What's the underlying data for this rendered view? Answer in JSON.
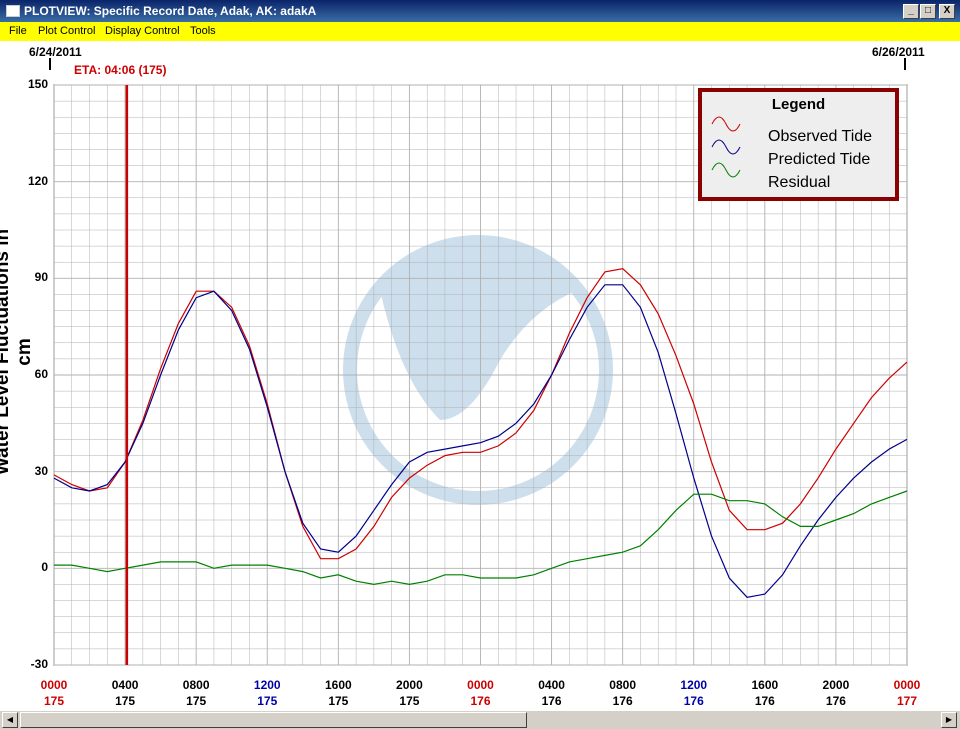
{
  "window": {
    "title": "PLOTVIEW: Specific Record Date, Adak, AK: adakA",
    "min_label": "_",
    "max_label": "□",
    "close_label": "X"
  },
  "menu": [
    "File",
    "Plot Control",
    "Display Control",
    "Tools"
  ],
  "header": {
    "start_date": "6/24/2011",
    "end_date": "6/26/2011",
    "eta": "ETA: 04:06 (175)"
  },
  "colors": {
    "observed": "#cc0000",
    "predicted": "#00008b",
    "residual": "#008000",
    "eta_line": "#cc0000",
    "grid": "#b0b0b0",
    "legend_border": "#8b0000",
    "watermark": "#c8dcea"
  },
  "chart_data": {
    "type": "line",
    "title": "",
    "ylabel": "Water Level Fluctuations in cm",
    "xlabel": "",
    "ylim": [
      -30,
      150
    ],
    "yticks": [
      -30,
      0,
      30,
      60,
      90,
      120,
      150
    ],
    "xlim_hours": [
      0,
      48
    ],
    "xticks": [
      {
        "time": "0000",
        "day": "175",
        "color": "#cc0000"
      },
      {
        "time": "0400",
        "day": "175",
        "color": "#000000"
      },
      {
        "time": "0800",
        "day": "175",
        "color": "#000000"
      },
      {
        "time": "1200",
        "day": "175",
        "color": "#0000aa"
      },
      {
        "time": "1600",
        "day": "175",
        "color": "#000000"
      },
      {
        "time": "2000",
        "day": "175",
        "color": "#000000"
      },
      {
        "time": "0000",
        "day": "176",
        "color": "#cc0000"
      },
      {
        "time": "0400",
        "day": "176",
        "color": "#000000"
      },
      {
        "time": "0800",
        "day": "176",
        "color": "#000000"
      },
      {
        "time": "1200",
        "day": "176",
        "color": "#0000aa"
      },
      {
        "time": "1600",
        "day": "176",
        "color": "#000000"
      },
      {
        "time": "2000",
        "day": "176",
        "color": "#000000"
      },
      {
        "time": "0000",
        "day": "177",
        "color": "#cc0000"
      }
    ],
    "grid": true,
    "legend_position": "top-right",
    "legend_title": "Legend",
    "eta_hour": 4.1,
    "series": [
      {
        "name": "Observed Tide",
        "hours": [
          0,
          1,
          2,
          3,
          4,
          5,
          6,
          7,
          8,
          9,
          10,
          11,
          12,
          13,
          14,
          15,
          16,
          17,
          18,
          19,
          20,
          21,
          22,
          23,
          24,
          25,
          26,
          27,
          28,
          29,
          30,
          31,
          32,
          33,
          34,
          35,
          36,
          37,
          38,
          39,
          40,
          41,
          42,
          43,
          44,
          45,
          46,
          47,
          48
        ],
        "values": [
          29,
          26,
          24,
          25,
          33,
          46,
          62,
          76,
          86,
          86,
          81,
          69,
          51,
          30,
          13,
          3,
          3,
          6,
          13,
          22,
          28,
          32,
          35,
          36,
          36,
          38,
          42,
          49,
          60,
          73,
          84,
          92,
          93,
          88,
          79,
          66,
          51,
          33,
          18,
          12,
          12,
          14,
          20,
          28,
          37,
          45,
          53,
          59,
          64
        ]
      },
      {
        "name": "Predicted Tide",
        "hours": [
          0,
          1,
          2,
          3,
          4,
          5,
          6,
          7,
          8,
          9,
          10,
          11,
          12,
          13,
          14,
          15,
          16,
          17,
          18,
          19,
          20,
          21,
          22,
          23,
          24,
          25,
          26,
          27,
          28,
          29,
          30,
          31,
          32,
          33,
          34,
          35,
          36,
          37,
          38,
          39,
          40,
          41,
          42,
          43,
          44,
          45,
          46,
          47,
          48
        ],
        "values": [
          28,
          25,
          24,
          26,
          33,
          45,
          60,
          74,
          84,
          86,
          80,
          68,
          50,
          30,
          14,
          6,
          5,
          10,
          18,
          26,
          33,
          36,
          37,
          38,
          39,
          41,
          45,
          51,
          60,
          71,
          81,
          88,
          88,
          81,
          67,
          48,
          28,
          10,
          -3,
          -9,
          -8,
          -2,
          7,
          15,
          22,
          28,
          33,
          37,
          40
        ]
      },
      {
        "name": "Residual",
        "hours": [
          0,
          1,
          2,
          3,
          4,
          5,
          6,
          7,
          8,
          9,
          10,
          11,
          12,
          13,
          14,
          15,
          16,
          17,
          18,
          19,
          20,
          21,
          22,
          23,
          24,
          25,
          26,
          27,
          28,
          29,
          30,
          31,
          32,
          33,
          34,
          35,
          36,
          37,
          38,
          39,
          40,
          41,
          42,
          43,
          44,
          45,
          46,
          47,
          48
        ],
        "values": [
          1,
          1,
          0,
          -1,
          0,
          1,
          2,
          2,
          2,
          0,
          1,
          1,
          1,
          0,
          -1,
          -3,
          -2,
          -4,
          -5,
          -4,
          -5,
          -4,
          -2,
          -2,
          -3,
          -3,
          -3,
          -2,
          0,
          2,
          3,
          4,
          5,
          7,
          12,
          18,
          23,
          23,
          21,
          21,
          20,
          16,
          13,
          13,
          15,
          17,
          20,
          22,
          24
        ]
      }
    ]
  }
}
